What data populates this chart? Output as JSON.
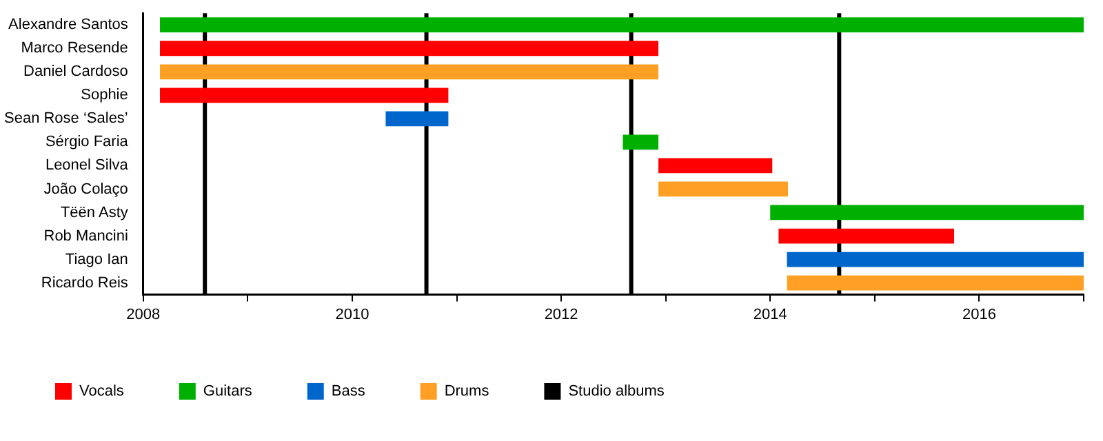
{
  "chart_data": {
    "type": "bar",
    "orientation": "horizontal",
    "categories": [
      "Alexandre Santos",
      "Marco Resende",
      "Daniel Cardoso",
      "Sophie",
      "Sean Rose ‘Sales’",
      "Sérgio Faria",
      "Leonel Silva",
      "João Colaço",
      "Tëën Asty",
      "Rob Mancini",
      "Tiago Ian",
      "Ricardo Reis"
    ],
    "series": [
      {
        "name": "Vocals",
        "color": "#ff0000",
        "base": [
          null,
          2008.16,
          null,
          2008.16,
          null,
          null,
          2012.93,
          null,
          null,
          2014.08,
          null,
          null
        ],
        "values": [
          null,
          4.77,
          null,
          2.76,
          null,
          null,
          1.09,
          null,
          null,
          1.68,
          null,
          null
        ]
      },
      {
        "name": "Guitars",
        "color": "#00b000",
        "base": [
          2008.16,
          null,
          null,
          null,
          null,
          2012.59,
          null,
          null,
          2014.0,
          null,
          null,
          null
        ],
        "values": [
          8.84,
          null,
          null,
          null,
          null,
          0.34,
          null,
          null,
          3.0,
          null,
          null,
          null
        ]
      },
      {
        "name": "Bass",
        "color": "#0066cc",
        "base": [
          null,
          null,
          null,
          null,
          2010.32,
          null,
          null,
          null,
          null,
          null,
          2014.16,
          null
        ],
        "values": [
          null,
          null,
          null,
          null,
          0.6,
          null,
          null,
          null,
          null,
          null,
          2.84,
          null
        ]
      },
      {
        "name": "Drums",
        "color": "#ffa024",
        "base": [
          null,
          null,
          2008.16,
          null,
          null,
          null,
          null,
          2012.93,
          null,
          null,
          null,
          2014.16
        ],
        "values": [
          null,
          null,
          4.77,
          null,
          null,
          null,
          null,
          1.24,
          null,
          null,
          null,
          2.84
        ]
      }
    ],
    "ref_lines": [
      {
        "axis": "x",
        "value": 2008.59,
        "label": "Studio albums",
        "color": "#000000"
      },
      {
        "axis": "x",
        "value": 2010.71,
        "color": "#000000"
      },
      {
        "axis": "x",
        "value": 2012.67,
        "color": "#000000"
      },
      {
        "axis": "x",
        "value": 2014.66,
        "color": "#000000"
      }
    ],
    "xlim": [
      2008,
      2017
    ],
    "xticks": [
      2008,
      {
        "value": 2009,
        "label": null
      },
      2010,
      {
        "value": 2011,
        "label": null
      },
      2012,
      {
        "value": 2013,
        "label": null
      },
      2014,
      {
        "value": 2015,
        "label": null
      },
      2016,
      {
        "value": 2017,
        "label": null
      }
    ],
    "legend": "bottom",
    "grid": false
  }
}
